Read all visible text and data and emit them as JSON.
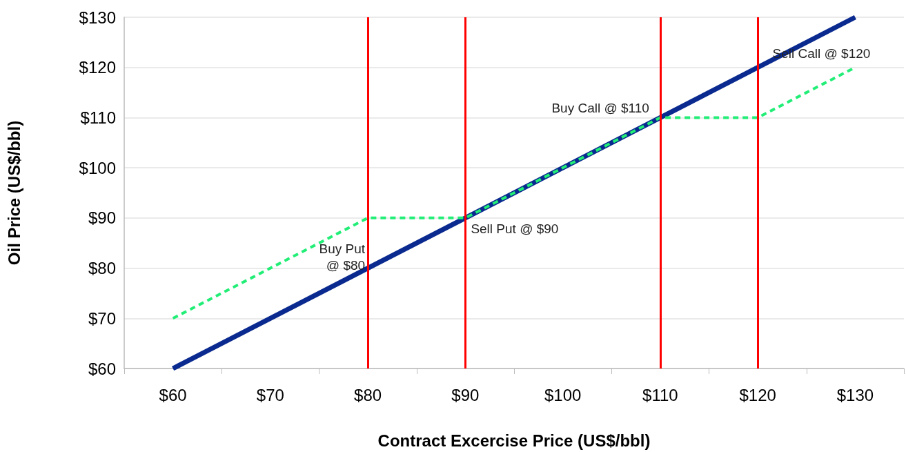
{
  "chart_data": {
    "type": "line",
    "xlabel": "Contract Excercise Price (US$/bbl)",
    "ylabel": "Oil Price (US$/bbl)",
    "xlim": [
      55,
      135
    ],
    "xticks": [
      {
        "value": 55,
        "label": null
      },
      {
        "value": 60,
        "label": "$60"
      },
      {
        "value": 65,
        "label": null
      },
      {
        "value": 70,
        "label": "$70"
      },
      {
        "value": 75,
        "label": null
      },
      {
        "value": 80,
        "label": "$80"
      },
      {
        "value": 85,
        "label": null
      },
      {
        "value": 90,
        "label": "$90"
      },
      {
        "value": 95,
        "label": null
      },
      {
        "value": 100,
        "label": "$100"
      },
      {
        "value": 105,
        "label": null
      },
      {
        "value": 110,
        "label": "$110"
      },
      {
        "value": 115,
        "label": null
      },
      {
        "value": 120,
        "label": "$120"
      },
      {
        "value": 125,
        "label": null
      },
      {
        "value": 130,
        "label": "$130"
      },
      {
        "value": 135,
        "label": null
      }
    ],
    "ylim": [
      60,
      130
    ],
    "yticks": [
      {
        "value": 60,
        "label": "$60"
      },
      {
        "value": 70,
        "label": "$70"
      },
      {
        "value": 80,
        "label": "$80"
      },
      {
        "value": 90,
        "label": "$90"
      },
      {
        "value": 100,
        "label": "$100"
      },
      {
        "value": 110,
        "label": "$110"
      },
      {
        "value": 120,
        "label": "$120"
      },
      {
        "value": 130,
        "label": "$130"
      }
    ],
    "grid": "y",
    "series": [
      {
        "color": "#0a2a8f",
        "x": [
          60,
          130
        ],
        "values": [
          60,
          130
        ],
        "line_style": "solid"
      },
      {
        "color": "#22ee77",
        "x": [
          60,
          80,
          90,
          110,
          120,
          130
        ],
        "values": [
          70,
          90,
          90,
          110,
          110,
          120
        ],
        "line_style": "dashed"
      }
    ],
    "ref_lines": [
      {
        "axis": "x",
        "value": 80,
        "color": "#ff0000"
      },
      {
        "axis": "x",
        "value": 90,
        "color": "#ff0000"
      },
      {
        "axis": "x",
        "value": 110,
        "color": "#ff0000"
      },
      {
        "axis": "x",
        "value": 120,
        "color": "#ff0000"
      }
    ],
    "annotations": [
      {
        "text": "Buy Put\n@ $80",
        "x": 80,
        "y": 80
      },
      {
        "text": "Sell Put @ $90",
        "x": 90,
        "y": 90
      },
      {
        "text": "Buy Call @ $110",
        "x": 110,
        "y": 110
      },
      {
        "text": "Sell Call @ $120",
        "x": 130,
        "y": 120
      }
    ]
  }
}
